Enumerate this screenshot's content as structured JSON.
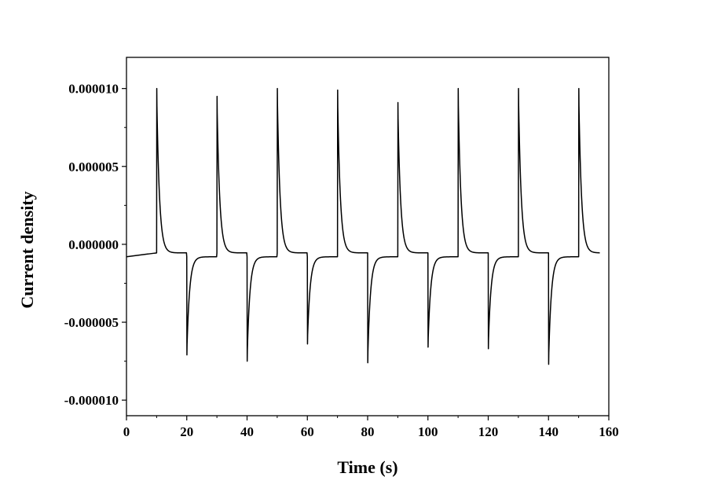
{
  "chart_data": {
    "type": "line",
    "title": "",
    "xlabel": "Time (s)",
    "ylabel": "Current density",
    "xlim": [
      0,
      160
    ],
    "ylim": [
      -1.1e-05,
      1.2e-05
    ],
    "x_ticks": [
      0,
      20,
      40,
      60,
      80,
      100,
      120,
      140,
      160
    ],
    "x_tick_labels": [
      "0",
      "20",
      "40",
      "60",
      "80",
      "100",
      "120",
      "140",
      "160"
    ],
    "y_ticks": [
      1e-05,
      5e-06,
      0,
      -5e-06,
      -1e-05
    ],
    "y_tick_labels": [
      "0.000010",
      "0.000005",
      "0.000000",
      "-0.000005",
      "-0.000010"
    ],
    "grid": false,
    "legend": "none",
    "line_color": "#000000",
    "baseline_after_off": -8e-07,
    "baseline_before_on": -5.5e-07,
    "series": [
      {
        "events": [
          {
            "t": 10,
            "type": "on",
            "peak": 1e-05
          },
          {
            "t": 20,
            "type": "off",
            "peak": -7.1e-06
          },
          {
            "t": 30,
            "type": "on",
            "peak": 9.5e-06
          },
          {
            "t": 40,
            "type": "off",
            "peak": -7.5e-06
          },
          {
            "t": 50,
            "type": "on",
            "peak": 1e-05
          },
          {
            "t": 60,
            "type": "off",
            "peak": -6.4e-06
          },
          {
            "t": 70,
            "type": "on",
            "peak": 9.9e-06
          },
          {
            "t": 80,
            "type": "off",
            "peak": -7.6e-06
          },
          {
            "t": 90,
            "type": "on",
            "peak": 9.1e-06
          },
          {
            "t": 100,
            "type": "off",
            "peak": -6.6e-06
          },
          {
            "t": 110,
            "type": "on",
            "peak": 1e-05
          },
          {
            "t": 120,
            "type": "off",
            "peak": -6.7e-06
          },
          {
            "t": 130,
            "type": "on",
            "peak": 1e-05
          },
          {
            "t": 140,
            "type": "off",
            "peak": -7.7e-06
          },
          {
            "t": 150,
            "type": "on",
            "peak": 1e-05
          }
        ],
        "t_end": 157
      }
    ]
  }
}
